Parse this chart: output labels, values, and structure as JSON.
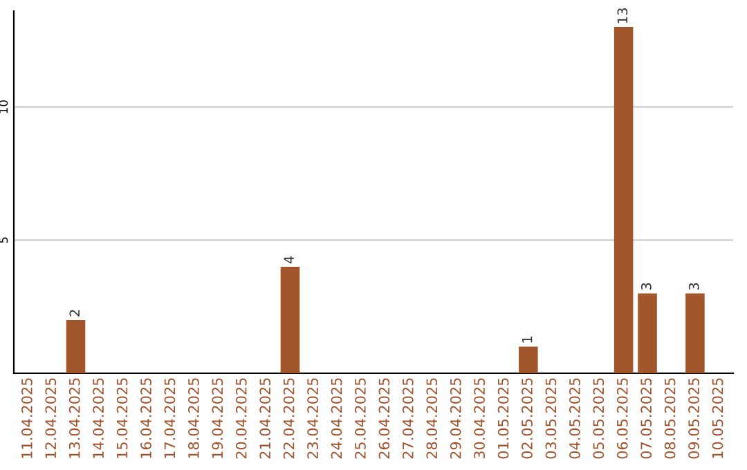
{
  "chart_data": {
    "type": "bar",
    "categories": [
      "11.04.2025",
      "12.04.2025",
      "13.04.2025",
      "14.04.2025",
      "15.04.2025",
      "16.04.2025",
      "17.04.2025",
      "18.04.2025",
      "19.04.2025",
      "20.04.2025",
      "21.04.2025",
      "22.04.2025",
      "23.04.2025",
      "24.04.2025",
      "25.04.2025",
      "26.04.2025",
      "27.04.2025",
      "28.04.2025",
      "29.04.2025",
      "30.04.2025",
      "01.05.2025",
      "02.05.2025",
      "03.05.2025",
      "04.05.2025",
      "05.05.2025",
      "06.05.2025",
      "07.05.2025",
      "08.05.2025",
      "09.05.2025",
      "10.05.2025"
    ],
    "values": [
      0,
      0,
      2,
      0,
      0,
      0,
      0,
      0,
      0,
      0,
      0,
      4,
      0,
      0,
      0,
      0,
      0,
      0,
      0,
      0,
      0,
      1,
      0,
      0,
      0,
      13,
      3,
      0,
      3,
      0
    ],
    "value_labels": [
      null,
      null,
      "2",
      null,
      null,
      null,
      null,
      null,
      null,
      null,
      null,
      "4",
      null,
      null,
      null,
      null,
      null,
      null,
      null,
      null,
      null,
      "1",
      null,
      null,
      null,
      "13",
      "3",
      null,
      "3",
      null
    ],
    "color": "#a0562a",
    "ylim": [
      0,
      13.6
    ],
    "yticks": [
      5,
      10
    ],
    "grid": "y"
  }
}
